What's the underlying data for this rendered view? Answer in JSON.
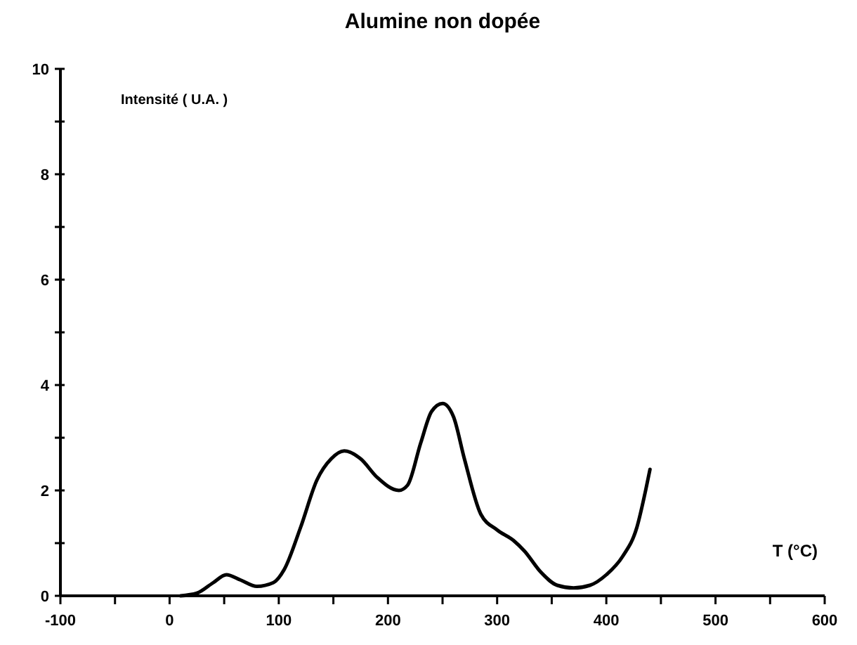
{
  "chart_data": {
    "type": "line",
    "title": "Alumine non dopée",
    "xlabel": "T (°C)",
    "ylabel": "Intensité ( U.A. )",
    "x": [
      10,
      25,
      40,
      52,
      65,
      80,
      95,
      105,
      120,
      135,
      148,
      160,
      175,
      190,
      210,
      218,
      230,
      240,
      250,
      260,
      270,
      285,
      300,
      315,
      325,
      340,
      355,
      370,
      385,
      400,
      415,
      428,
      436,
      440
    ],
    "series": [
      {
        "color": "#000000",
        "values": [
          0,
          0.05,
          0.25,
          0.4,
          0.3,
          0.18,
          0.25,
          0.5,
          1.3,
          2.2,
          2.6,
          2.75,
          2.6,
          2.25,
          2.0,
          2.1,
          2.9,
          3.5,
          3.65,
          3.4,
          2.6,
          1.55,
          1.25,
          1.05,
          0.85,
          0.45,
          0.2,
          0.15,
          0.2,
          0.4,
          0.75,
          1.3,
          2.0,
          2.4
        ]
      }
    ],
    "xlim": [
      -100,
      600
    ],
    "xticks": [
      -100,
      {
        "value": -50,
        "label": null
      },
      0,
      {
        "value": 50,
        "label": null
      },
      100,
      {
        "value": 150,
        "label": null
      },
      200,
      {
        "value": 250,
        "label": null
      },
      300,
      {
        "value": 350,
        "label": null
      },
      400,
      {
        "value": 450,
        "label": null
      },
      500,
      {
        "value": 550,
        "label": null
      },
      600
    ],
    "ylim": [
      0,
      10
    ],
    "yticks": [
      0,
      {
        "value": 1,
        "label": null
      },
      2,
      {
        "value": 3,
        "label": null
      },
      4,
      {
        "value": 5,
        "label": null
      },
      6,
      {
        "value": 7,
        "label": null
      },
      8,
      {
        "value": 9,
        "label": null
      },
      10
    ],
    "grid": false,
    "marker": "none",
    "line_style": "solid"
  }
}
